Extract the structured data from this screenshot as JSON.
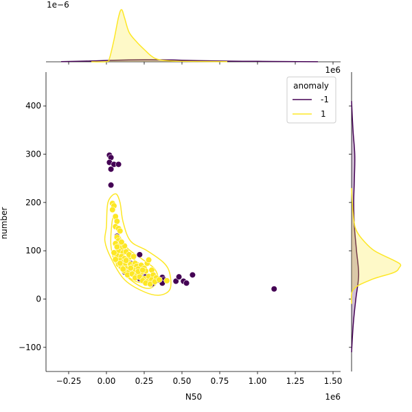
{
  "chart_data": {
    "type": "scatter",
    "subtype": "jointplot with KDE contours and marginal KDE",
    "xlabel": "N50",
    "ylabel": "number",
    "x_offset_label": "1e6",
    "y_offset_label": "",
    "top_marginal_offset_label": "1e−6",
    "right_marginal_offset_label": "1e6",
    "xlim": [
      -0.4,
      1.55
    ],
    "ylim": [
      -150,
      470
    ],
    "xticks": [
      "−0.25",
      "0.00",
      "0.25",
      "0.50",
      "0.75",
      "1.00",
      "1.25",
      "1.50"
    ],
    "xtick_values": [
      -0.25,
      0,
      0.25,
      0.5,
      0.75,
      1.0,
      1.25,
      1.5
    ],
    "yticks": [
      "−100",
      "0",
      "100",
      "200",
      "300",
      "400"
    ],
    "ytick_values": [
      -100,
      0,
      100,
      200,
      300,
      400
    ],
    "grid": false,
    "legend": {
      "title": "anomaly",
      "placement": "top-right",
      "entries": [
        "-1",
        "1"
      ]
    },
    "colors": {
      "anomaly_-1": "#440154",
      "anomaly_1": "#fde725",
      "edge": "#ffffff"
    },
    "series": [
      {
        "name": "-1",
        "points": [
          [
            0.02,
            298
          ],
          [
            0.03,
            293
          ],
          [
            0.02,
            283
          ],
          [
            0.05,
            279
          ],
          [
            0.03,
            269
          ],
          [
            0.08,
            279
          ],
          [
            0.03,
            236
          ],
          [
            0.07,
            130
          ],
          [
            0.22,
            92
          ],
          [
            0.16,
            74
          ],
          [
            0.12,
            56
          ],
          [
            0.21,
            54
          ],
          [
            0.24,
            49
          ],
          [
            0.26,
            46
          ],
          [
            0.3,
            31
          ],
          [
            0.34,
            39
          ],
          [
            0.37,
            45
          ],
          [
            0.38,
            40
          ],
          [
            0.37,
            33
          ],
          [
            0.46,
            37
          ],
          [
            0.48,
            46
          ],
          [
            0.51,
            37
          ],
          [
            0.53,
            33
          ],
          [
            0.57,
            50
          ],
          [
            1.11,
            21
          ],
          [
            0.22,
            42
          ]
        ]
      },
      {
        "name": "1",
        "points": [
          [
            0.04,
            198
          ],
          [
            0.05,
            193
          ],
          [
            0.04,
            185
          ],
          [
            0.06,
            171
          ],
          [
            0.07,
            161
          ],
          [
            0.06,
            150
          ],
          [
            0.08,
            146
          ],
          [
            0.09,
            141
          ],
          [
            0.07,
            128
          ],
          [
            0.08,
            121
          ],
          [
            0.06,
            115
          ],
          [
            0.09,
            111
          ],
          [
            0.1,
            105
          ],
          [
            0.12,
            110
          ],
          [
            0.08,
            100
          ],
          [
            0.11,
            96
          ],
          [
            0.13,
            98
          ],
          [
            0.07,
            90
          ],
          [
            0.1,
            88
          ],
          [
            0.12,
            84
          ],
          [
            0.15,
            86
          ],
          [
            0.09,
            80
          ],
          [
            0.11,
            76
          ],
          [
            0.14,
            78
          ],
          [
            0.08,
            72
          ],
          [
            0.12,
            70
          ],
          [
            0.16,
            72
          ],
          [
            0.19,
            74
          ],
          [
            0.1,
            66
          ],
          [
            0.13,
            63
          ],
          [
            0.17,
            66
          ],
          [
            0.2,
            68
          ],
          [
            0.23,
            70
          ],
          [
            0.12,
            58
          ],
          [
            0.15,
            56
          ],
          [
            0.18,
            60
          ],
          [
            0.21,
            62
          ],
          [
            0.25,
            64
          ],
          [
            0.27,
            74
          ],
          [
            0.28,
            81
          ],
          [
            0.14,
            50
          ],
          [
            0.17,
            52
          ],
          [
            0.2,
            48
          ],
          [
            0.23,
            55
          ],
          [
            0.26,
            58
          ],
          [
            0.3,
            60
          ],
          [
            0.19,
            44
          ],
          [
            0.22,
            46
          ],
          [
            0.25,
            42
          ],
          [
            0.28,
            47
          ],
          [
            0.31,
            50
          ],
          [
            0.24,
            38
          ],
          [
            0.27,
            36
          ],
          [
            0.3,
            40
          ],
          [
            0.33,
            44
          ],
          [
            0.26,
            33
          ],
          [
            0.29,
            31
          ],
          [
            0.32,
            36
          ],
          [
            0.35,
            40
          ],
          [
            0.4,
            38
          ],
          [
            0.1,
            118
          ],
          [
            0.07,
            108
          ],
          [
            0.15,
            92
          ],
          [
            0.18,
            88
          ],
          [
            0.05,
            96
          ],
          [
            0.11,
            62
          ],
          [
            0.13,
            80
          ],
          [
            0.16,
            64
          ],
          [
            0.21,
            57
          ],
          [
            0.24,
            60
          ],
          [
            0.06,
            82
          ],
          [
            0.09,
            74
          ]
        ]
      }
    ],
    "kde_contours": [
      {
        "series": "1",
        "levels": [
          [
            [
              0.0,
              150
            ],
            [
              0.01,
              200
            ],
            [
              0.06,
              218
            ],
            [
              0.09,
              200
            ],
            [
              0.11,
              160
            ],
            [
              0.16,
              120
            ],
            [
              0.27,
              100
            ],
            [
              0.38,
              75
            ],
            [
              0.42,
              52
            ],
            [
              0.42,
              20
            ],
            [
              0.35,
              8
            ],
            [
              0.25,
              15
            ],
            [
              0.12,
              40
            ],
            [
              0.03,
              85
            ],
            [
              -0.01,
              120
            ]
          ],
          [
            [
              0.04,
              165
            ],
            [
              0.06,
              160
            ],
            [
              0.08,
              135
            ],
            [
              0.14,
              105
            ],
            [
              0.24,
              82
            ],
            [
              0.32,
              62
            ],
            [
              0.34,
              38
            ],
            [
              0.28,
              22
            ],
            [
              0.18,
              35
            ],
            [
              0.07,
              70
            ],
            [
              0.03,
              110
            ]
          ],
          [
            [
              0.07,
              125
            ],
            [
              0.09,
              112
            ],
            [
              0.15,
              90
            ],
            [
              0.23,
              70
            ],
            [
              0.27,
              52
            ],
            [
              0.24,
              34
            ],
            [
              0.15,
              45
            ],
            [
              0.08,
              80
            ],
            [
              0.06,
              105
            ]
          ],
          [
            [
              0.08,
              100
            ],
            [
              0.13,
              85
            ],
            [
              0.18,
              70
            ],
            [
              0.19,
              56
            ],
            [
              0.13,
              60
            ],
            [
              0.08,
              80
            ]
          ]
        ]
      }
    ],
    "marginal_x": {
      "unit_label": "1e−6",
      "series": [
        {
          "name": "1",
          "x": [
            -0.1,
            0.0,
            0.02,
            0.05,
            0.08,
            0.1,
            0.12,
            0.15,
            0.2,
            0.25,
            0.3,
            0.35,
            0.45,
            0.6,
            0.8
          ],
          "density": [
            0.0,
            0.03,
            0.5,
            3.2,
            6.5,
            7.6,
            6.4,
            4.3,
            2.9,
            1.8,
            0.8,
            0.3,
            0.1,
            0.05,
            0.02
          ]
        },
        {
          "name": "-1",
          "x": [
            -0.3,
            -0.1,
            0.0,
            0.1,
            0.2,
            0.3,
            0.4,
            0.5,
            0.6,
            0.8,
            1.0,
            1.2,
            1.4
          ],
          "density": [
            0.02,
            0.12,
            0.2,
            0.25,
            0.29,
            0.3,
            0.28,
            0.23,
            0.18,
            0.1,
            0.07,
            0.04,
            0.01
          ]
        }
      ]
    },
    "marginal_y": {
      "series": [
        {
          "name": "1",
          "y": [
            -10,
            20,
            40,
            55,
            65,
            72,
            80,
            100,
            120,
            140,
            160,
            200,
            230
          ],
          "density": [
            0.0,
            0.05,
            0.55,
            1.2,
            1.35,
            1.38,
            1.2,
            0.65,
            0.35,
            0.15,
            0.07,
            0.02,
            0.0
          ]
        },
        {
          "name": "-1",
          "y": [
            -110,
            -50,
            0,
            50,
            100,
            150,
            200,
            250,
            300,
            350,
            410
          ],
          "density": [
            0.0,
            0.05,
            0.12,
            0.2,
            0.14,
            0.08,
            0.06,
            0.08,
            0.09,
            0.04,
            0.0
          ]
        }
      ]
    }
  }
}
